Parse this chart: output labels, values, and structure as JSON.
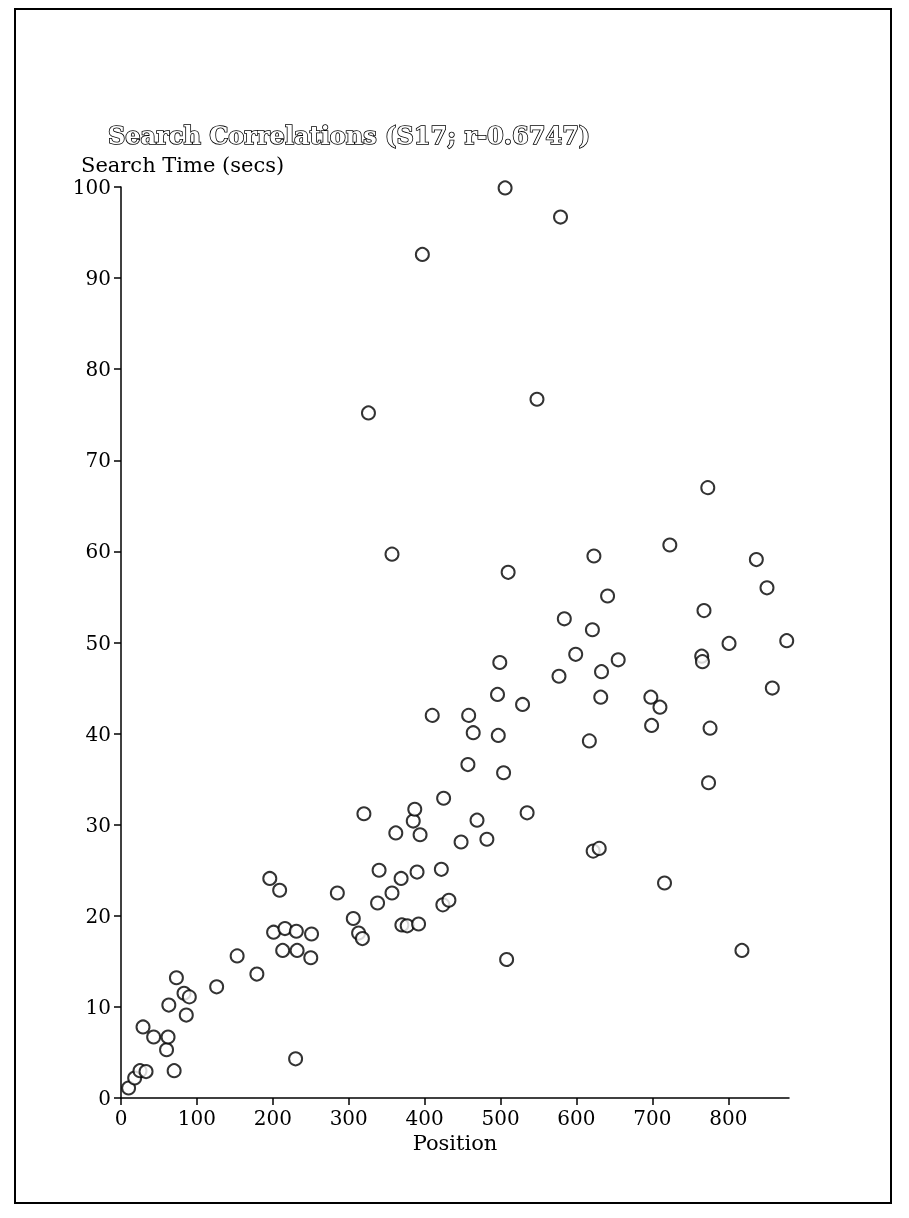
{
  "chart_data": {
    "type": "scatter",
    "title": "Search Correlations (S17; r-0.6747)",
    "xlabel": "Position",
    "ylabel": "Search Time (secs)",
    "xlim": [
      0,
      880
    ],
    "xticks": [
      0,
      100,
      200,
      300,
      400,
      500,
      600,
      700,
      800
    ],
    "ylim": [
      0,
      100
    ],
    "yticks": [
      0,
      10,
      20,
      30,
      40,
      50,
      60,
      70,
      80,
      90,
      100
    ],
    "grid": false,
    "marker": "circle",
    "series": [
      {
        "color": "#000000",
        "x": [
          10,
          18,
          25,
          33,
          70,
          230,
          60,
          29,
          43,
          62,
          63,
          73,
          83,
          90,
          86,
          126,
          153,
          179,
          196,
          209,
          201,
          216,
          231,
          251,
          213,
          232,
          250,
          285,
          306,
          313,
          318,
          320,
          362,
          340,
          369,
          357,
          338,
          370,
          377,
          385,
          387,
          394,
          390,
          392,
          499,
          599,
          655,
          577,
          633,
          632,
          496,
          529,
          410,
          458,
          464,
          497,
          617,
          457,
          504,
          425,
          469,
          535,
          448,
          482,
          622,
          630,
          422,
          424,
          432,
          773,
          723,
          837,
          851,
          510,
          623,
          641,
          584,
          621,
          768,
          801,
          877,
          765,
          766,
          698,
          710,
          858,
          699,
          776,
          774,
          326,
          397,
          506,
          579,
          548,
          357,
          508,
          818,
          716
        ],
        "values": [
          1.1,
          2.2,
          3.0,
          2.9,
          3.0,
          4.3,
          5.3,
          7.8,
          6.7,
          6.7,
          10.2,
          13.2,
          11.5,
          11.1,
          9.1,
          12.2,
          15.6,
          13.6,
          24.1,
          22.8,
          18.2,
          18.6,
          18.3,
          18.0,
          16.2,
          16.2,
          15.4,
          22.5,
          19.7,
          18.1,
          17.5,
          31.2,
          29.1,
          25.0,
          24.1,
          22.5,
          21.4,
          19.0,
          18.9,
          30.4,
          31.7,
          28.9,
          24.8,
          19.1,
          47.8,
          48.7,
          48.1,
          46.3,
          46.8,
          44.0,
          44.3,
          43.2,
          42.0,
          42.0,
          40.1,
          39.8,
          39.2,
          36.6,
          35.7,
          32.9,
          30.5,
          31.3,
          28.1,
          28.4,
          27.1,
          27.4,
          25.1,
          21.2,
          21.7,
          67.0,
          60.7,
          59.1,
          56.0,
          57.7,
          59.5,
          55.1,
          52.6,
          51.4,
          53.5,
          49.9,
          50.2,
          48.5,
          47.9,
          44.0,
          42.9,
          45.0,
          40.9,
          40.6,
          34.6,
          75.2,
          92.6,
          99.9,
          96.7,
          76.7,
          59.7,
          15.2,
          16.2,
          23.6
        ]
      }
    ]
  }
}
